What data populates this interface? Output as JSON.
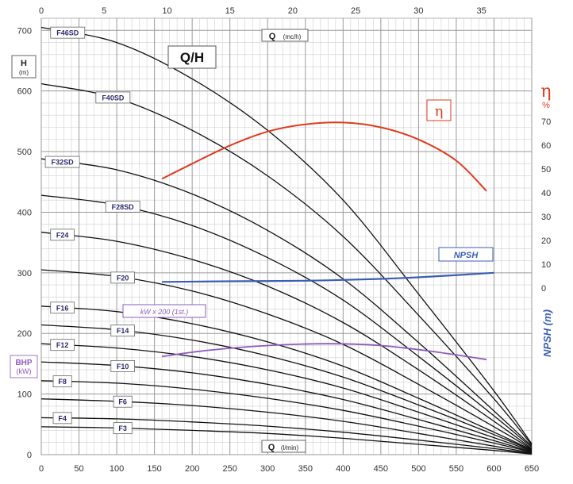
{
  "colors": {
    "grid_minor": "#cfcfcf",
    "grid_major": "#9a9a9a",
    "head_curves": "#111111",
    "efficiency": "#e03a1e",
    "npsh": "#3a5db5",
    "power": "#8e5bc0",
    "label_text": "#2b2b6e"
  },
  "labels": {
    "title": "Q/H",
    "h_axis": "H",
    "h_unit": "(m)",
    "bhp": "BHP",
    "bhp_unit": "(kW)",
    "eta_symbol": "η",
    "eta_unit": "%",
    "eta_chart_label": "η",
    "npsh_axis": "NPSH (m)",
    "npsh_tag": "NPSH",
    "power_tag": "kW x 200 (1st.)",
    "q_top": "Q",
    "q_top_unit": "(mc/h)",
    "q_bottom": "Q",
    "q_bottom_unit": "(l/min)"
  },
  "chart_data": {
    "type": "line",
    "title": "Q/H",
    "x": {
      "label": "Q (l/min)",
      "range": [
        0,
        650
      ],
      "ticks": [
        0,
        50,
        100,
        150,
        200,
        250,
        300,
        350,
        400,
        450,
        500,
        550,
        600,
        650
      ]
    },
    "x_top": {
      "label": "Q (mc/h)",
      "range": [
        0,
        39
      ],
      "ticks": [
        0,
        5,
        10,
        15,
        20,
        25,
        30,
        35
      ]
    },
    "y": {
      "label": "H (m)",
      "range": [
        0,
        720
      ],
      "ticks": [
        0,
        100,
        200,
        300,
        400,
        500,
        600,
        700
      ]
    },
    "y_right_efficiency": {
      "label": "η %",
      "ticks": [
        "70",
        "60",
        "50",
        "40",
        "30",
        "20",
        "10",
        "0"
      ]
    },
    "y_right_npsh": {
      "label": "NPSH (m)"
    },
    "grid": true,
    "head_curves": [
      {
        "name": "F46SD",
        "shutoff": 705,
        "label_q": 35,
        "x": [
          0,
          100,
          200,
          300,
          400,
          500,
          600,
          650
        ],
        "y": [
          705,
          680,
          620,
          535,
          420,
          265,
          105,
          18
        ]
      },
      {
        "name": "F40SD",
        "shutoff": 612,
        "label_q": 95,
        "x": [
          0,
          100,
          200,
          300,
          400,
          500,
          600,
          650
        ],
        "y": [
          612,
          588,
          535,
          460,
          360,
          230,
          92,
          16
        ]
      },
      {
        "name": "F32SD",
        "shutoff": 488,
        "label_q": 28,
        "x": [
          0,
          100,
          200,
          300,
          400,
          500,
          600,
          650
        ],
        "y": [
          488,
          470,
          430,
          370,
          290,
          185,
          72,
          14
        ]
      },
      {
        "name": "F28SD",
        "shutoff": 428,
        "label_q": 108,
        "x": [
          0,
          100,
          200,
          300,
          400,
          500,
          600,
          650
        ],
        "y": [
          428,
          412,
          378,
          325,
          255,
          162,
          64,
          12
        ]
      },
      {
        "name": "F24",
        "shutoff": 367,
        "label_q": 28,
        "x": [
          0,
          100,
          200,
          300,
          400,
          500,
          600,
          650
        ],
        "y": [
          367,
          352,
          322,
          278,
          218,
          140,
          55,
          10
        ]
      },
      {
        "name": "F20",
        "shutoff": 305,
        "label_q": 108,
        "x": [
          0,
          100,
          200,
          300,
          400,
          500,
          600,
          650
        ],
        "y": [
          305,
          294,
          270,
          232,
          182,
          116,
          46,
          9
        ]
      },
      {
        "name": "F16",
        "shutoff": 245,
        "label_q": 28,
        "x": [
          0,
          100,
          200,
          300,
          400,
          500,
          600,
          650
        ],
        "y": [
          245,
          236,
          216,
          186,
          146,
          93,
          37,
          8
        ]
      },
      {
        "name": "F14",
        "shutoff": 214,
        "label_q": 108,
        "x": [
          0,
          100,
          200,
          300,
          400,
          500,
          600,
          650
        ],
        "y": [
          214,
          206,
          189,
          163,
          128,
          82,
          33,
          7
        ]
      },
      {
        "name": "F12",
        "shutoff": 183,
        "label_q": 28,
        "x": [
          0,
          100,
          200,
          300,
          400,
          500,
          600,
          650
        ],
        "y": [
          183,
          176,
          162,
          140,
          110,
          70,
          28,
          6
        ]
      },
      {
        "name": "F10",
        "shutoff": 153,
        "label_q": 108,
        "x": [
          0,
          100,
          200,
          300,
          400,
          500,
          600,
          650
        ],
        "y": [
          153,
          147,
          135,
          116,
          91,
          58,
          23,
          5
        ]
      },
      {
        "name": "F8",
        "shutoff": 122,
        "label_q": 28,
        "x": [
          0,
          100,
          200,
          300,
          400,
          500,
          600,
          650
        ],
        "y": [
          122,
          118,
          108,
          93,
          73,
          47,
          19,
          4
        ]
      },
      {
        "name": "F6",
        "shutoff": 92,
        "label_q": 108,
        "x": [
          0,
          100,
          200,
          300,
          400,
          500,
          600,
          650
        ],
        "y": [
          92,
          88,
          81,
          70,
          55,
          35,
          14,
          3
        ]
      },
      {
        "name": "F4",
        "shutoff": 61,
        "label_q": 28,
        "x": [
          0,
          100,
          200,
          300,
          400,
          500,
          600,
          650
        ],
        "y": [
          61,
          59,
          54,
          47,
          37,
          24,
          10,
          2
        ]
      },
      {
        "name": "F3",
        "shutoff": 46,
        "label_q": 108,
        "x": [
          0,
          100,
          200,
          300,
          400,
          500,
          600,
          650
        ],
        "y": [
          46,
          44,
          40,
          35,
          27,
          17,
          7,
          1
        ]
      }
    ],
    "efficiency_curve": {
      "x": [
        160,
        200,
        250,
        300,
        350,
        400,
        450,
        500,
        550,
        590
      ],
      "y": [
        455,
        480,
        510,
        533,
        545,
        548,
        540,
        520,
        485,
        435
      ]
    },
    "npsh_curve": {
      "x": [
        160,
        250,
        350,
        450,
        520,
        600
      ],
      "y": [
        285,
        286,
        287,
        290,
        294,
        300
      ]
    },
    "power_curve": {
      "x": [
        160,
        220,
        300,
        380,
        450,
        520,
        590
      ],
      "y": [
        162,
        172,
        180,
        183,
        180,
        170,
        157
      ]
    }
  }
}
